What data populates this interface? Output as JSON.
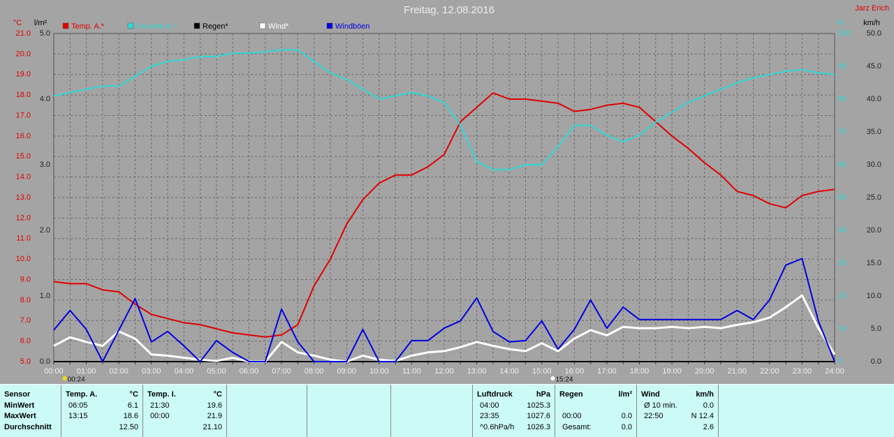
{
  "chart_data": {
    "type": "line",
    "title": "Freitag, 12.08.2016",
    "author": "Jarz Erich",
    "axis_units": {
      "y": "°C",
      "y4": "l/m²",
      "y3": "%",
      "y2": "km/h"
    },
    "categories": [
      "00:00",
      null,
      "01:00",
      null,
      "02:00",
      null,
      "03:00",
      null,
      "04:00",
      null,
      "05:00",
      null,
      "06:00",
      null,
      "07:00",
      null,
      "08:00",
      null,
      "09:00",
      null,
      "10:00",
      null,
      "11:00",
      null,
      "12:00",
      null,
      "13:00",
      null,
      "14:00",
      null,
      "15:00",
      null,
      "16:00",
      null,
      "17:00",
      null,
      "18:00",
      null,
      "19:00",
      null,
      "20:00",
      null,
      "21:00",
      null,
      "22:00",
      null,
      "23:00",
      null,
      "24:00"
    ],
    "annotations": [
      "00:24",
      "15:24"
    ],
    "grid": true,
    "ylim": [
      5,
      21
    ],
    "yticks": [
      {
        "value": 5,
        "label": "5.0"
      },
      {
        "value": 6,
        "label": "6.0"
      },
      {
        "value": 7,
        "label": "7.0"
      },
      {
        "value": 8,
        "label": "8.0"
      },
      {
        "value": 9,
        "label": "9.0"
      },
      {
        "value": 10,
        "label": "10.0"
      },
      {
        "value": 11,
        "label": "11.0"
      },
      {
        "value": 12,
        "label": "12.0"
      },
      {
        "value": 13,
        "label": "13.0"
      },
      {
        "value": 14,
        "label": "14.0"
      },
      {
        "value": 15,
        "label": "15.0"
      },
      {
        "value": 16,
        "label": "16.0"
      },
      {
        "value": 17,
        "label": "17.0"
      },
      {
        "value": 18,
        "label": "18.0"
      },
      {
        "value": 19,
        "label": "19.0"
      },
      {
        "value": 20,
        "label": "20.0"
      },
      {
        "value": 21,
        "label": "21.0"
      }
    ],
    "y4lim": [
      0,
      5
    ],
    "y4ticks": [
      {
        "value": 0,
        "label": "0.0"
      },
      {
        "value": 1,
        "label": "1.0"
      },
      {
        "value": 2,
        "label": "2.0"
      },
      {
        "value": 3,
        "label": "3.0"
      },
      {
        "value": 4,
        "label": "4.0"
      },
      {
        "value": 5,
        "label": "5.0"
      }
    ],
    "y3lim": [
      0,
      100
    ],
    "y3ticks": [
      0,
      10,
      20,
      30,
      40,
      50,
      60,
      70,
      80,
      90,
      100
    ],
    "y2lim": [
      0,
      50
    ],
    "y2ticks": [
      {
        "value": 0,
        "label": "0.0"
      },
      {
        "value": 5,
        "label": "5.0"
      },
      {
        "value": 10,
        "label": "10.0"
      },
      {
        "value": 15,
        "label": "15.0"
      },
      {
        "value": 20,
        "label": "20.0"
      },
      {
        "value": 25,
        "label": "25.0"
      },
      {
        "value": 30,
        "label": "30.0"
      },
      {
        "value": 35,
        "label": "35.0"
      },
      {
        "value": 40,
        "label": "40.0"
      },
      {
        "value": 45,
        "label": "45.0"
      },
      {
        "value": 50,
        "label": "50.0"
      }
    ],
    "series": [
      {
        "name": "Temp. A.*",
        "color": "#e00000",
        "axis": "y",
        "values": [
          8.9,
          8.8,
          8.8,
          8.5,
          8.4,
          7.8,
          7.3,
          7.1,
          6.9,
          6.8,
          6.6,
          6.4,
          6.3,
          6.2,
          6.3,
          6.8,
          8.7,
          10.0,
          11.7,
          12.9,
          13.7,
          14.1,
          14.1,
          14.5,
          15.1,
          16.7,
          17.4,
          18.1,
          17.8,
          17.8,
          17.7,
          17.6,
          17.2,
          17.3,
          17.5,
          17.6,
          17.4,
          16.7,
          16.0,
          15.4,
          14.7,
          14.1,
          13.3,
          13.1,
          12.7,
          12.5,
          13.1,
          13.3,
          13.4
        ]
      },
      {
        "name": "Feuchte A.*",
        "color": "#30d8d8",
        "axis": "y3",
        "values": [
          81,
          82,
          83,
          84,
          84,
          87,
          90,
          91.5,
          92,
          93,
          93,
          94,
          94,
          94.5,
          95,
          95,
          91.5,
          88,
          86,
          83,
          80,
          81,
          82,
          81,
          79,
          72,
          61,
          58.5,
          58.5,
          60,
          60,
          65.5,
          72,
          72,
          69,
          67,
          69,
          73,
          76,
          79,
          81,
          83,
          85,
          86.5,
          87.5,
          88.5,
          89,
          88,
          87.5
        ]
      },
      {
        "name": "Regen*",
        "color": "#000000",
        "axis": "y4",
        "values": [
          0,
          0,
          0,
          0,
          0,
          0,
          0,
          0,
          0,
          0,
          0,
          0,
          0,
          0,
          0,
          0,
          0,
          0,
          0,
          0,
          0,
          0,
          0,
          0,
          0,
          0,
          0,
          0,
          0,
          0,
          0,
          0,
          0,
          0,
          0,
          0,
          0,
          0,
          0,
          0,
          0,
          0,
          0,
          0,
          0,
          0,
          0,
          0,
          0
        ]
      },
      {
        "name": "Wind*",
        "color": "#ffffff",
        "axis": "y2",
        "values": [
          2.4,
          3.7,
          3.0,
          2.4,
          4.6,
          3.5,
          1.1,
          0.9,
          0.6,
          0.3,
          0.1,
          0.6,
          0,
          0,
          3.0,
          1.4,
          0.9,
          0.3,
          0,
          0.9,
          0.3,
          0.1,
          0.9,
          1.4,
          1.6,
          2.2,
          3.0,
          2.4,
          1.9,
          1.6,
          2.8,
          1.6,
          3.5,
          4.8,
          4.0,
          5.3,
          5.1,
          5.1,
          5.3,
          5.1,
          5.3,
          5.1,
          5.6,
          6.0,
          6.7,
          8.3,
          10.1,
          5.1,
          1.1
        ]
      },
      {
        "name": "Windböen",
        "color": "#0000e0",
        "axis": "y2",
        "values": [
          4.8,
          7.8,
          4.9,
          0,
          4.8,
          9.6,
          3.0,
          4.6,
          2.4,
          0,
          3.2,
          1.4,
          0,
          0,
          8.0,
          3.0,
          0,
          0,
          0,
          4.9,
          0,
          0,
          3.2,
          3.2,
          5.1,
          6.2,
          9.7,
          4.6,
          3.0,
          3.2,
          6.2,
          1.9,
          4.9,
          9.4,
          5.1,
          8.3,
          6.4,
          6.4,
          6.4,
          6.4,
          6.4,
          6.4,
          7.8,
          6.4,
          9.4,
          14.7,
          15.7,
          6.2,
          0
        ]
      }
    ]
  },
  "table": {
    "row_labels": [
      "Sensor",
      "MinWert",
      "MaxWert",
      "Durchschnitt"
    ],
    "groups": [
      {
        "header": [
          "Temp. A.",
          "°C"
        ],
        "rows": [
          [
            "06:05",
            "6.1"
          ],
          [
            "13:15",
            "18.6"
          ],
          [
            null,
            "12.50"
          ]
        ]
      },
      {
        "header": [
          "Temp. I.",
          "°C"
        ],
        "rows": [
          [
            "21:30",
            "19.6"
          ],
          [
            "00:00",
            "21.9"
          ],
          [
            null,
            "21.10"
          ]
        ]
      },
      {
        "header": [
          "Luftdruck",
          "hPa"
        ],
        "rows": [
          [
            "04:00",
            "1025.3"
          ],
          [
            "23:35",
            "1027.6"
          ],
          [
            "^0.6hPa/h",
            "1026.3"
          ]
        ]
      },
      {
        "header": [
          "Regen",
          "l/m²"
        ],
        "rows": [
          [
            null,
            null
          ],
          [
            "00:00",
            "0.0"
          ],
          [
            "Gesamt:",
            "0.0"
          ]
        ]
      },
      {
        "header": [
          "Wind",
          "km/h"
        ],
        "rows": [
          [
            "Ø 10 min.",
            "0.0"
          ],
          [
            "22:50",
            "N 12.4"
          ],
          [
            null,
            "2.6"
          ]
        ]
      }
    ]
  }
}
